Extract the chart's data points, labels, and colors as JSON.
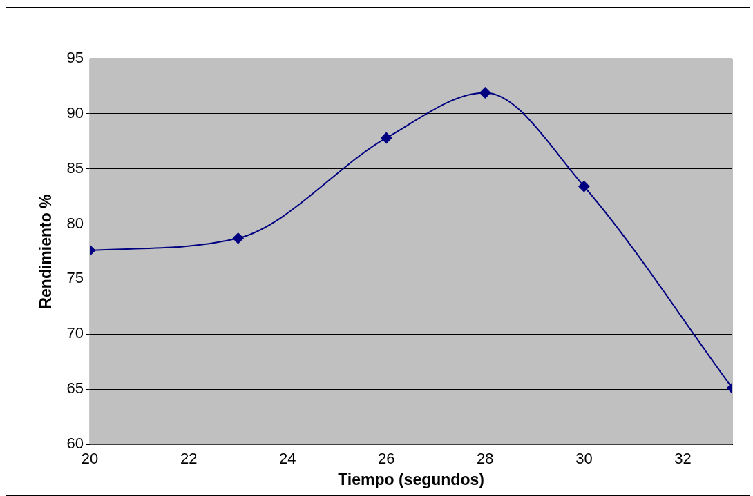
{
  "chart_data": {
    "type": "line",
    "xlabel": "Tiempo (segundos)",
    "ylabel": "Rendimiento %",
    "x": [
      20,
      23,
      26,
      28,
      30,
      33
    ],
    "series": [
      {
        "color": "#000080",
        "values": [
          77.6,
          78.7,
          87.8,
          91.9,
          83.4,
          65.1
        ]
      }
    ],
    "xlim": [
      20,
      33
    ],
    "xticks": [
      20,
      22,
      24,
      26,
      28,
      30,
      32
    ],
    "ylim": [
      60,
      95
    ],
    "yticks": [
      60,
      65,
      70,
      75,
      80,
      85,
      90,
      95
    ],
    "grid": "y",
    "legend": false,
    "marker": "diamond",
    "line_style": "solid"
  }
}
